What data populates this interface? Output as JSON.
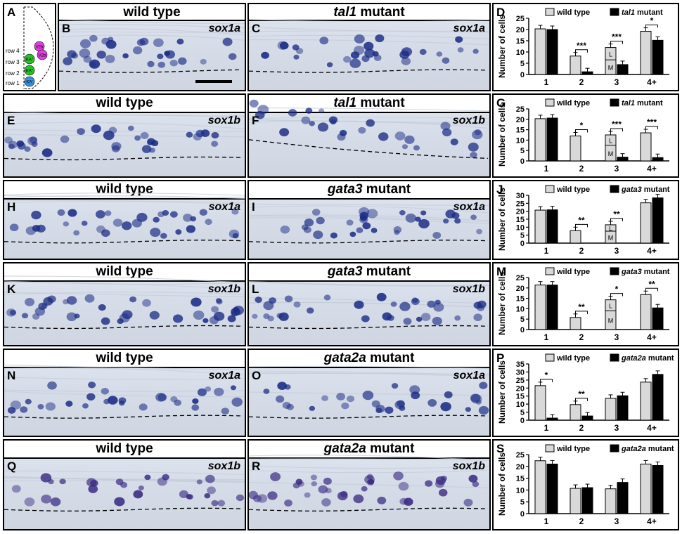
{
  "titles": {
    "r1": {
      "left": "wild type",
      "right_gene": "tal1",
      "right_suffix": " mutant"
    },
    "r2": {
      "left": "wild type",
      "right_gene": "tal1",
      "right_suffix": " mutant"
    },
    "r3": {
      "left": "wild type",
      "right_gene": "gata3",
      "right_suffix": " mutant"
    },
    "r4": {
      "left": "wild type",
      "right_gene": "gata3",
      "right_suffix": " mutant"
    },
    "r5": {
      "left": "wild type",
      "right_gene": "gata2a",
      "right_suffix": " mutant"
    },
    "r6": {
      "left": "wild type",
      "right_gene": "gata2a",
      "right_suffix": " mutant"
    }
  },
  "panel_letters": [
    "A",
    "B",
    "C",
    "D",
    "E",
    "F",
    "G",
    "H",
    "I",
    "J",
    "K",
    "L",
    "M",
    "N",
    "O",
    "P",
    "Q",
    "R",
    "S"
  ],
  "genes": {
    "B": "sox1a",
    "C": "sox1a",
    "E": "sox1b",
    "F": "sox1b",
    "H": "sox1a",
    "I": "sox1a",
    "K": "sox1b",
    "L": "sox1b",
    "N": "sox1a",
    "O": "sox1a",
    "Q": "sox1b",
    "R": "sox1b"
  },
  "schematic": {
    "rows": [
      "row 4",
      "row 3",
      "row 2",
      "row 1"
    ],
    "cells": [
      {
        "label": "V2b",
        "color": "#e040e0"
      },
      {
        "label": "V2b",
        "color": "#e040e0"
      },
      {
        "label": "KA\"",
        "color": "#22c322"
      },
      {
        "label": "KA\"",
        "color": "#22c322"
      },
      {
        "label": "KA'",
        "color": "#3a8fe0"
      }
    ]
  },
  "colors": {
    "wild_type_bar": "#d9d9d9",
    "mutant_bar": "#000000",
    "stain": "#1c2c86"
  },
  "chart_data": [
    {
      "panel": "D",
      "type": "bar",
      "ylabel": "Number of cells",
      "ylim": [
        0,
        25
      ],
      "yticks": [
        0,
        5,
        10,
        15,
        20,
        25
      ],
      "categories": [
        "1",
        "2",
        "3",
        "4+"
      ],
      "series": [
        {
          "name": "wild type",
          "values": [
            20.3,
            8.2,
            12,
            19.2
          ]
        },
        {
          "name": "tal1 mutant",
          "values": [
            20,
            1.2,
            4.4,
            15.2
          ]
        }
      ],
      "legend": {
        "wt": "wild type",
        "mut_gene": "tal1",
        "mut_suffix": " mutant"
      },
      "significance": [
        {
          "cat": "2",
          "label": "***"
        },
        {
          "cat": "3",
          "label": "***"
        },
        {
          "cat": "4+",
          "label": "*"
        }
      ],
      "stack_labels": [
        {
          "cat": "3",
          "upper": "L",
          "lower": "M",
          "split": 6.5
        }
      ]
    },
    {
      "panel": "G",
      "type": "bar",
      "ylabel": "Number of cells",
      "ylim": [
        0,
        25
      ],
      "yticks": [
        0,
        5,
        10,
        15,
        20,
        25
      ],
      "categories": [
        "1",
        "2",
        "3",
        "4+"
      ],
      "series": [
        {
          "name": "wild type",
          "values": [
            20.3,
            12,
            12.5,
            13.5
          ]
        },
        {
          "name": "tal1 mutant",
          "values": [
            20.6,
            0,
            1.8,
            1.6
          ]
        }
      ],
      "legend": {
        "wt": "wild type",
        "mut_gene": "tal1",
        "mut_suffix": " mutant"
      },
      "significance": [
        {
          "cat": "2",
          "label": "*"
        },
        {
          "cat": "3",
          "label": "***"
        },
        {
          "cat": "4+",
          "label": "***"
        }
      ],
      "stack_labels": [
        {
          "cat": "3",
          "upper": "L",
          "lower": "M",
          "split": 7.5
        }
      ]
    },
    {
      "panel": "J",
      "type": "bar",
      "ylabel": "Number of cells",
      "ylim": [
        0,
        30
      ],
      "yticks": [
        0,
        5,
        10,
        15,
        20,
        25,
        30
      ],
      "categories": [
        "1",
        "2",
        "3",
        "4+"
      ],
      "series": [
        {
          "name": "wild type",
          "values": [
            20.7,
            7.8,
            11.5,
            25.3
          ]
        },
        {
          "name": "gata3 mutant",
          "values": [
            20.9,
            0,
            0,
            28.4
          ]
        }
      ],
      "legend": {
        "wt": "wild type",
        "mut_gene": "gata3",
        "mut_suffix": " mutant"
      },
      "significance": [
        {
          "cat": "2",
          "label": "**"
        },
        {
          "cat": "3",
          "label": "**"
        }
      ],
      "stack_labels": [
        {
          "cat": "3",
          "upper": "L",
          "lower": "M",
          "split": 7.5
        }
      ]
    },
    {
      "panel": "M",
      "type": "bar",
      "ylabel": "Number of cells",
      "ylim": [
        0,
        25
      ],
      "yticks": [
        0,
        5,
        10,
        15,
        20,
        25
      ],
      "categories": [
        "1",
        "2",
        "3",
        "4+"
      ],
      "series": [
        {
          "name": "wild type",
          "values": [
            21.4,
            5.8,
            14.3,
            16.8
          ]
        },
        {
          "name": "gata3 mutant",
          "values": [
            21.4,
            0,
            0,
            10.4
          ]
        }
      ],
      "legend": {
        "wt": "wild type",
        "mut_gene": "gata3",
        "mut_suffix": " mutant"
      },
      "significance": [
        {
          "cat": "2",
          "label": "**"
        },
        {
          "cat": "3",
          "label": "*"
        },
        {
          "cat": "4+",
          "label": "**"
        }
      ],
      "stack_labels": [
        {
          "cat": "3",
          "upper": "L",
          "lower": "M",
          "split": 9
        }
      ]
    },
    {
      "panel": "P",
      "type": "bar",
      "ylabel": "Number of cells",
      "ylim": [
        0,
        35
      ],
      "yticks": [
        0,
        5,
        10,
        15,
        20,
        25,
        30,
        35
      ],
      "categories": [
        "1",
        "2",
        "3",
        "4+"
      ],
      "series": [
        {
          "name": "wild type",
          "values": [
            21.5,
            9.7,
            13.6,
            23.7
          ]
        },
        {
          "name": "gata2a mutant",
          "values": [
            1.3,
            2.6,
            15.2,
            28.5
          ]
        }
      ],
      "legend": {
        "wt": "wild type",
        "mut_gene": "gata2a",
        "mut_suffix": " mutant"
      },
      "significance": [
        {
          "cat": "1",
          "label": "*"
        },
        {
          "cat": "2",
          "label": "**"
        }
      ],
      "stack_labels": []
    },
    {
      "panel": "S",
      "type": "bar",
      "ylabel": "Number of cells",
      "ylim": [
        0,
        25
      ],
      "yticks": [
        0,
        5,
        10,
        15,
        20,
        25
      ],
      "categories": [
        "1",
        "2",
        "3",
        "4+"
      ],
      "series": [
        {
          "name": "wild type",
          "values": [
            22.4,
            10.7,
            10.5,
            21
          ]
        },
        {
          "name": "gata2a mutant",
          "values": [
            21,
            11,
            13.2,
            20.4
          ]
        }
      ],
      "legend": {
        "wt": "wild type",
        "mut_gene": "gata2a",
        "mut_suffix": " mutant"
      },
      "significance": [],
      "stack_labels": []
    }
  ]
}
